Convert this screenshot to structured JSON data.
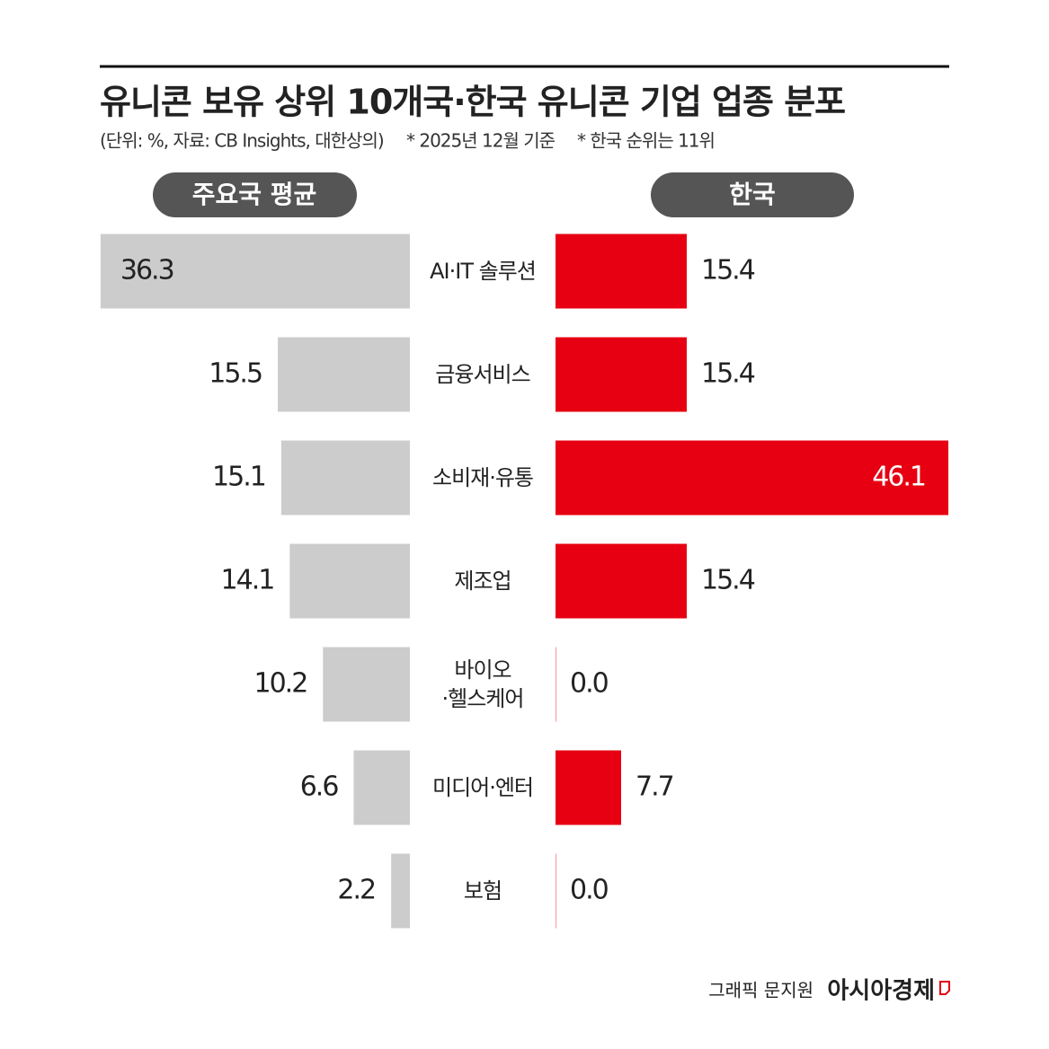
{
  "chart_data": {
    "type": "butterfly",
    "title": "유니콘 보유 상위 10개국·한국 유니콘 기업 업종 분포",
    "subtitle": "(단위: %, 자료: CB Insights, 대한상의)",
    "notes": [
      "* 2025년 12월 기준",
      "* 한국 순위는 11위"
    ],
    "categories": [
      "AI·IT 솔루션",
      "금융서비스",
      "소비재·유통",
      "제조업",
      "바이오\n·헬스케어",
      "미디어·엔터",
      "보험"
    ],
    "series": [
      {
        "name": "주요국 평균",
        "color": "#cccccc",
        "values": [
          36.3,
          15.5,
          15.1,
          14.1,
          10.2,
          6.6,
          2.2
        ]
      },
      {
        "name": "한국",
        "color": "#e60012",
        "values": [
          15.4,
          15.4,
          46.1,
          15.4,
          0,
          7.7,
          0
        ],
        "value_labels": [
          "15.4",
          "15.4",
          "46.1",
          "15.4",
          "0.0",
          "7.7",
          "0.0"
        ]
      }
    ],
    "credit": "그래픽 문지원",
    "source_logo": "아시아경제"
  }
}
